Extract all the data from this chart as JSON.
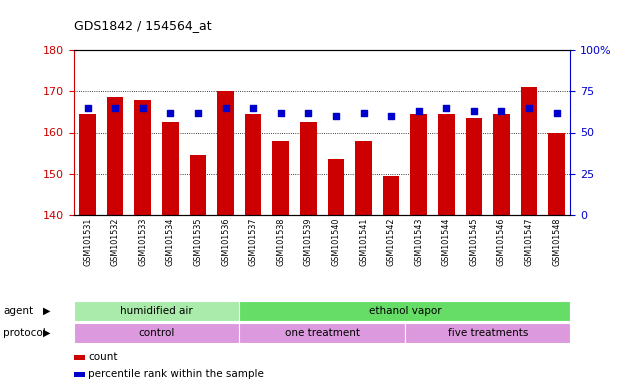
{
  "title": "GDS1842 / 154564_at",
  "samples": [
    "GSM101531",
    "GSM101532",
    "GSM101533",
    "GSM101534",
    "GSM101535",
    "GSM101536",
    "GSM101537",
    "GSM101538",
    "GSM101539",
    "GSM101540",
    "GSM101541",
    "GSM101542",
    "GSM101543",
    "GSM101544",
    "GSM101545",
    "GSM101546",
    "GSM101547",
    "GSM101548"
  ],
  "count_values": [
    164.5,
    168.5,
    168.0,
    162.5,
    154.5,
    170.0,
    164.5,
    158.0,
    162.5,
    153.5,
    158.0,
    149.5,
    164.5,
    164.5,
    163.5,
    164.5,
    171.0,
    160.0
  ],
  "percentile_values": [
    65,
    65,
    65,
    62,
    62,
    65,
    65,
    62,
    62,
    60,
    62,
    60,
    63,
    65,
    63,
    63,
    65,
    62
  ],
  "ylim_left": [
    140,
    180
  ],
  "ylim_right": [
    0,
    100
  ],
  "yticks_left": [
    140,
    150,
    160,
    170,
    180
  ],
  "yticks_right": [
    0,
    25,
    50,
    75,
    100
  ],
  "bar_color": "#cc0000",
  "dot_color": "#0000cc",
  "bar_width": 0.6,
  "agent_groups": [
    {
      "label": "humidified air",
      "start": 0,
      "end": 6,
      "color": "#aaeaaa"
    },
    {
      "label": "ethanol vapor",
      "start": 6,
      "end": 18,
      "color": "#66dd66"
    }
  ],
  "protocol_labels": [
    "control",
    "one treatment",
    "five treatments"
  ],
  "protocol_ranges": [
    [
      0,
      6
    ],
    [
      6,
      12
    ],
    [
      12,
      18
    ]
  ],
  "protocol_color": "#dd99dd",
  "legend_count_label": "count",
  "legend_pct_label": "percentile rank within the sample",
  "agent_label": "agent",
  "protocol_label": "protocol",
  "background_color": "#ffffff",
  "plot_bg_color": "#ffffff"
}
